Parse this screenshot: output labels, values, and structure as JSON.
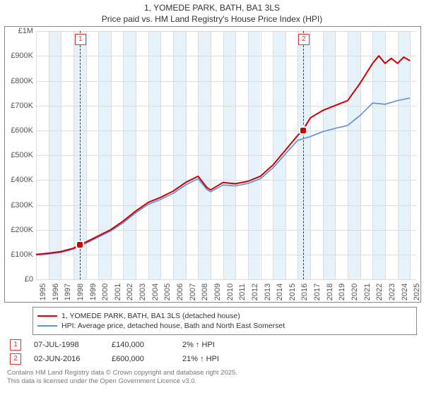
{
  "title_line1": "1, YOMEDE PARK, BATH, BA1 3LS",
  "title_line2": "Price paid vs. HM Land Registry's House Price Index (HPI)",
  "chart": {
    "type": "line",
    "background_color": "#ffffff",
    "band_color": "#E6F2FA",
    "grid_color": "#dddddd",
    "border_color": "#888888",
    "x_years": [
      1995,
      1996,
      1997,
      1998,
      1999,
      2000,
      2001,
      2002,
      2003,
      2004,
      2005,
      2006,
      2007,
      2008,
      2009,
      2010,
      2011,
      2012,
      2013,
      2014,
      2015,
      2016,
      2017,
      2018,
      2019,
      2020,
      2021,
      2022,
      2023,
      2024,
      2025
    ],
    "xlim": [
      1995,
      2025.5
    ],
    "ylim": [
      0,
      1000000
    ],
    "yticks": [
      {
        "v": 0,
        "label": "£0"
      },
      {
        "v": 100000,
        "label": "£100K"
      },
      {
        "v": 200000,
        "label": "£200K"
      },
      {
        "v": 300000,
        "label": "£300K"
      },
      {
        "v": 400000,
        "label": "£400K"
      },
      {
        "v": 500000,
        "label": "£500K"
      },
      {
        "v": 600000,
        "label": "£600K"
      },
      {
        "v": 700000,
        "label": "£700K"
      },
      {
        "v": 800000,
        "label": "£800K"
      },
      {
        "v": 900000,
        "label": "£900K"
      },
      {
        "v": 1000000,
        "label": "£1M"
      }
    ],
    "series": [
      {
        "name": "price_paid",
        "color": "#cc0000",
        "width": 2,
        "points": [
          [
            1995,
            100000
          ],
          [
            1996,
            105000
          ],
          [
            1997,
            112000
          ],
          [
            1998,
            125000
          ],
          [
            1998.5,
            140000
          ],
          [
            1999,
            150000
          ],
          [
            2000,
            175000
          ],
          [
            2001,
            200000
          ],
          [
            2002,
            235000
          ],
          [
            2003,
            275000
          ],
          [
            2004,
            310000
          ],
          [
            2005,
            330000
          ],
          [
            2006,
            355000
          ],
          [
            2007,
            390000
          ],
          [
            2008,
            415000
          ],
          [
            2008.7,
            370000
          ],
          [
            2009,
            360000
          ],
          [
            2010,
            390000
          ],
          [
            2011,
            385000
          ],
          [
            2012,
            395000
          ],
          [
            2013,
            415000
          ],
          [
            2014,
            460000
          ],
          [
            2015,
            520000
          ],
          [
            2016,
            580000
          ],
          [
            2016.4,
            600000
          ],
          [
            2017,
            650000
          ],
          [
            2018,
            680000
          ],
          [
            2019,
            700000
          ],
          [
            2020,
            720000
          ],
          [
            2021,
            790000
          ],
          [
            2022,
            870000
          ],
          [
            2022.5,
            900000
          ],
          [
            2023,
            870000
          ],
          [
            2023.5,
            890000
          ],
          [
            2024,
            870000
          ],
          [
            2024.5,
            895000
          ],
          [
            2025,
            880000
          ]
        ]
      },
      {
        "name": "hpi",
        "color": "#5B8FD6",
        "width": 1.6,
        "points": [
          [
            1995,
            98000
          ],
          [
            1996,
            102000
          ],
          [
            1997,
            108000
          ],
          [
            1998,
            122000
          ],
          [
            1999,
            145000
          ],
          [
            2000,
            170000
          ],
          [
            2001,
            195000
          ],
          [
            2002,
            228000
          ],
          [
            2003,
            268000
          ],
          [
            2004,
            302000
          ],
          [
            2005,
            322000
          ],
          [
            2006,
            346000
          ],
          [
            2007,
            380000
          ],
          [
            2008,
            405000
          ],
          [
            2008.7,
            362000
          ],
          [
            2009,
            352000
          ],
          [
            2010,
            380000
          ],
          [
            2011,
            376000
          ],
          [
            2012,
            386000
          ],
          [
            2013,
            405000
          ],
          [
            2014,
            448000
          ],
          [
            2015,
            505000
          ],
          [
            2016,
            560000
          ],
          [
            2017,
            575000
          ],
          [
            2018,
            595000
          ],
          [
            2019,
            608000
          ],
          [
            2020,
            620000
          ],
          [
            2021,
            660000
          ],
          [
            2022,
            710000
          ],
          [
            2023,
            705000
          ],
          [
            2024,
            720000
          ],
          [
            2025,
            730000
          ]
        ]
      }
    ],
    "markers": [
      {
        "n": "1",
        "x": 1998.5,
        "y": 140000,
        "dot_color": "#cc0000"
      },
      {
        "n": "2",
        "x": 2016.42,
        "y": 600000,
        "dot_color": "#cc0000"
      }
    ],
    "marker_line_color": "#cc0000"
  },
  "legend": [
    {
      "color": "#cc0000",
      "label": "1, YOMEDE PARK, BATH, BA1 3LS (detached house)"
    },
    {
      "color": "#5B8FD6",
      "label": "HPI: Average price, detached house, Bath and North East Somerset"
    }
  ],
  "marker_rows": [
    {
      "n": "1",
      "date": "07-JUL-1998",
      "price": "£140,000",
      "pct": "2% ↑ HPI"
    },
    {
      "n": "2",
      "date": "02-JUN-2016",
      "price": "£600,000",
      "pct": "21% ↑ HPI"
    }
  ],
  "footer_line1": "Contains HM Land Registry data © Crown copyright and database right 2025.",
  "footer_line2": "This data is licensed under the Open Government Licence v3.0."
}
